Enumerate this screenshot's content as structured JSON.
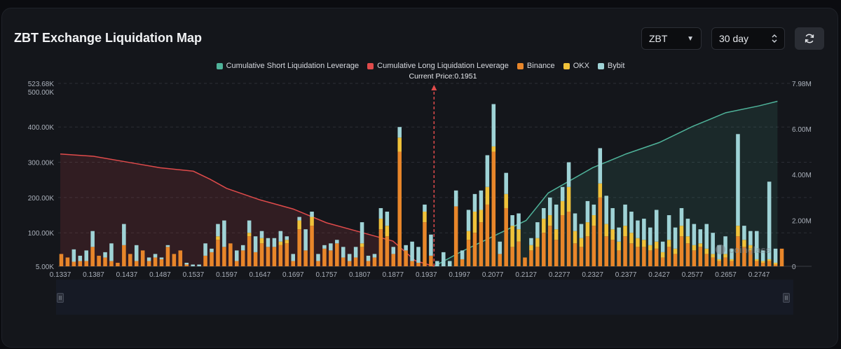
{
  "title": "ZBT Exchange Liquidation Map",
  "controls": {
    "symbol": "ZBT",
    "period": "30 day"
  },
  "legend": [
    {
      "label": "Cumulative Short Liquidation Leverage",
      "color": "#4fb39a"
    },
    {
      "label": "Cumulative Long Liquidation Leverage",
      "color": "#e04b4b"
    },
    {
      "label": "Binance",
      "color": "#e8862a"
    },
    {
      "label": "OKX",
      "color": "#f0c23a"
    },
    {
      "label": "Bybit",
      "color": "#9fd3d6"
    }
  ],
  "current_price_label": "Current Price:0.1951",
  "watermark": "coinglass",
  "chart_data": {
    "type": "bar",
    "current_price": 0.1951,
    "x_ticks": [
      "0.1337",
      "0.1387",
      "0.1437",
      "0.1487",
      "0.1537",
      "0.1597",
      "0.1647",
      "0.1697",
      "0.1757",
      "0.1807",
      "0.1877",
      "0.1937",
      "0.1997",
      "0.2077",
      "0.2127",
      "0.2277",
      "0.2327",
      "0.2377",
      "0.2427",
      "0.2577",
      "0.2657",
      "0.2747"
    ],
    "y_left_ticks": [
      "523.68K",
      "500.00K",
      "400.00K",
      "300.00K",
      "200.00K",
      "100.00K",
      "5.00K"
    ],
    "y_right_ticks": [
      "7.98M",
      "6.00M",
      "4.00M",
      "2.00M",
      "0"
    ],
    "ylim_left": [
      5000,
      523680
    ],
    "ylim_right": [
      0,
      7980000
    ],
    "series": [
      {
        "name": "Binance",
        "values": [
          40,
          30,
          18,
          20,
          20,
          60,
          35,
          30,
          20,
          15,
          65,
          40,
          20,
          50,
          20,
          30,
          25,
          60,
          40,
          50,
          10,
          5,
          5,
          35,
          45,
          80,
          60,
          70,
          20,
          50,
          90,
          45,
          70,
          60,
          60,
          65,
          70,
          20,
          110,
          50,
          120,
          20,
          55,
          50,
          70,
          30,
          20,
          30,
          60,
          20,
          30,
          110,
          90,
          40,
          330,
          50,
          20,
          15,
          130,
          35,
          5,
          0,
          5,
          175,
          25,
          80,
          100,
          130,
          180,
          330,
          40,
          170,
          60,
          75,
          30,
          50,
          60,
          100,
          120,
          80,
          150,
          160,
          70,
          60,
          90,
          120,
          200,
          90,
          80,
          50,
          90,
          70,
          60,
          60,
          50,
          55,
          30,
          60,
          40,
          90,
          70,
          50,
          60,
          40,
          30,
          20,
          30,
          20,
          90,
          60,
          50,
          20,
          15,
          20,
          10,
          55
        ]
      },
      {
        "name": "OKX",
        "values": [
          0,
          0,
          0,
          0,
          0,
          0,
          0,
          0,
          0,
          0,
          0,
          0,
          0,
          0,
          0,
          0,
          0,
          0,
          0,
          0,
          0,
          0,
          0,
          0,
          0,
          10,
          0,
          0,
          0,
          0,
          10,
          0,
          15,
          0,
          0,
          10,
          10,
          0,
          25,
          0,
          25,
          0,
          0,
          0,
          0,
          0,
          0,
          0,
          10,
          0,
          0,
          30,
          30,
          0,
          40,
          0,
          0,
          0,
          30,
          0,
          0,
          0,
          0,
          0,
          0,
          25,
          60,
          35,
          50,
          15,
          0,
          40,
          60,
          35,
          0,
          15,
          25,
          40,
          30,
          30,
          40,
          70,
          35,
          25,
          40,
          30,
          40,
          35,
          30,
          25,
          30,
          30,
          25,
          20,
          15,
          20,
          15,
          20,
          15,
          30,
          20,
          15,
          10,
          15,
          10,
          5,
          10,
          5,
          30,
          20,
          15,
          5,
          5,
          5,
          5,
          0
        ]
      },
      {
        "name": "Bybit",
        "values": [
          0,
          0,
          35,
          15,
          30,
          45,
          0,
          15,
          50,
          0,
          60,
          0,
          45,
          0,
          10,
          10,
          5,
          5,
          0,
          0,
          5,
          5,
          5,
          35,
          10,
          35,
          75,
          0,
          30,
          15,
          35,
          45,
          20,
          25,
          25,
          30,
          10,
          20,
          10,
          60,
          15,
          20,
          10,
          20,
          10,
          30,
          20,
          30,
          60,
          15,
          10,
          30,
          40,
          20,
          30,
          15,
          55,
          45,
          20,
          60,
          15,
          45,
          15,
          45,
          25,
          60,
          50,
          55,
          90,
          120,
          35,
          60,
          30,
          45,
          0,
          20,
          45,
          30,
          50,
          70,
          40,
          70,
          50,
          40,
          60,
          30,
          100,
          80,
          60,
          40,
          60,
          60,
          50,
          60,
          50,
          90,
          30,
          70,
          60,
          50,
          50,
          60,
          40,
          70,
          60,
          40,
          50,
          30,
          260,
          40,
          40,
          80,
          30,
          220,
          40,
          0
        ]
      },
      {
        "name": "Cumulative Long Liquidation Leverage",
        "points": [
          [
            0.1337,
            4.9
          ],
          [
            0.1387,
            4.8
          ],
          [
            0.1437,
            4.55
          ],
          [
            0.1487,
            4.3
          ],
          [
            0.1537,
            4.15
          ],
          [
            0.1567,
            3.8
          ],
          [
            0.1597,
            3.4
          ],
          [
            0.1647,
            2.9
          ],
          [
            0.1697,
            2.5
          ],
          [
            0.1757,
            1.9
          ],
          [
            0.1807,
            1.5
          ],
          [
            0.1877,
            1.1
          ],
          [
            0.1917,
            0.25
          ],
          [
            0.1951,
            0
          ]
        ]
      },
      {
        "name": "Cumulative Short Liquidation Leverage",
        "points": [
          [
            0.1951,
            0
          ],
          [
            0.1997,
            0.6
          ],
          [
            0.2077,
            1.3
          ],
          [
            0.2127,
            2.0
          ],
          [
            0.2227,
            3.2
          ],
          [
            0.2327,
            4.3
          ],
          [
            0.2377,
            4.9
          ],
          [
            0.2427,
            5.4
          ],
          [
            0.2577,
            6.1
          ],
          [
            0.2657,
            6.7
          ],
          [
            0.2747,
            7.0
          ],
          [
            0.2797,
            7.2
          ]
        ]
      }
    ]
  }
}
